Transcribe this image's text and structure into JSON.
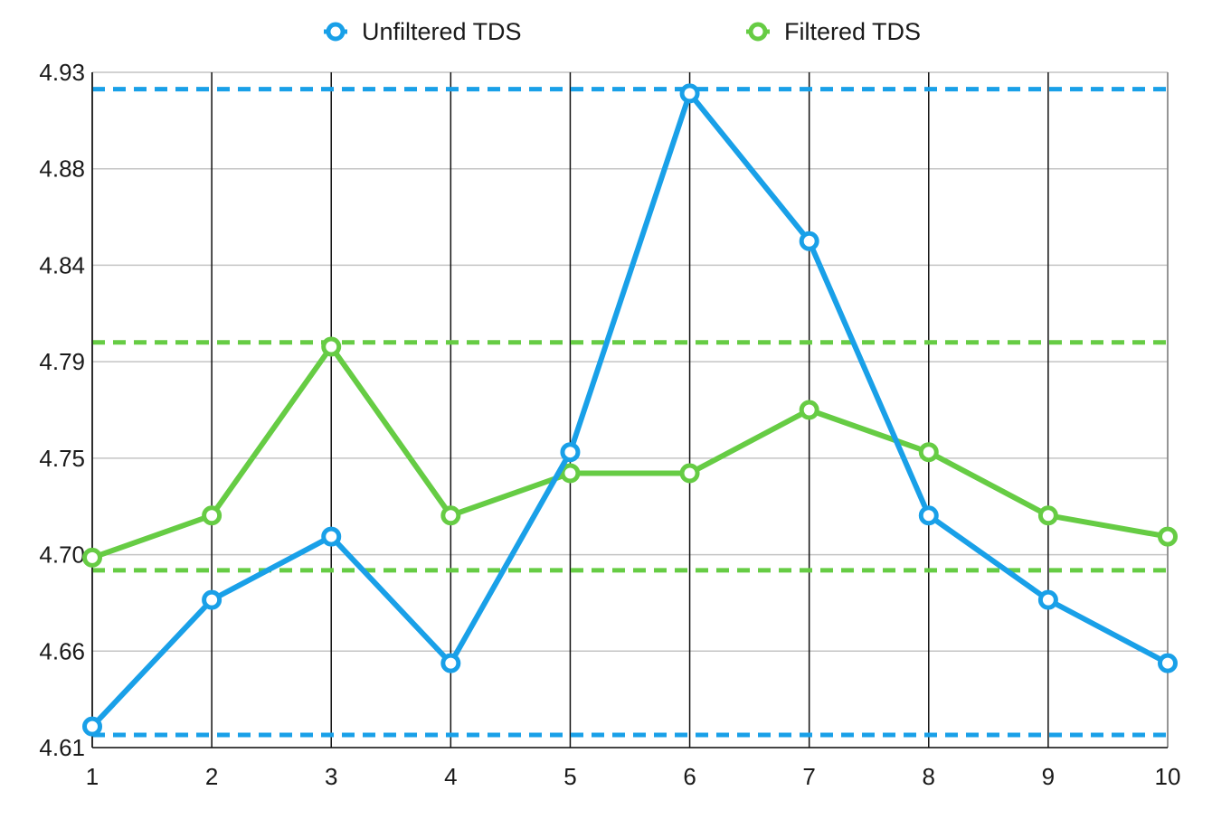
{
  "chart_data": {
    "type": "line",
    "x": [
      1,
      2,
      3,
      4,
      5,
      6,
      7,
      8,
      9,
      10
    ],
    "ylim": [
      4.61,
      4.93
    ],
    "y_ticks": [
      "4.61",
      "4.66",
      "4.70",
      "4.75",
      "4.79",
      "4.84",
      "4.88",
      "4.93"
    ],
    "x_ticks": [
      "1",
      "2",
      "3",
      "4",
      "5",
      "6",
      "7",
      "8",
      "9",
      "10"
    ],
    "grid": true,
    "legend_position": "top-center",
    "series": [
      {
        "name": "Unfiltered TDS",
        "color": "#19a0e8",
        "values": [
          4.62,
          4.68,
          4.71,
          4.65,
          4.75,
          4.92,
          4.85,
          4.72,
          4.68,
          4.65
        ],
        "reference_lines": [
          4.922,
          4.616
        ]
      },
      {
        "name": "Filtered TDS",
        "color": "#66cc44",
        "values": [
          4.7,
          4.72,
          4.8,
          4.72,
          4.74,
          4.74,
          4.77,
          4.75,
          4.72,
          4.71
        ],
        "reference_lines": [
          4.802,
          4.694
        ]
      }
    ]
  }
}
